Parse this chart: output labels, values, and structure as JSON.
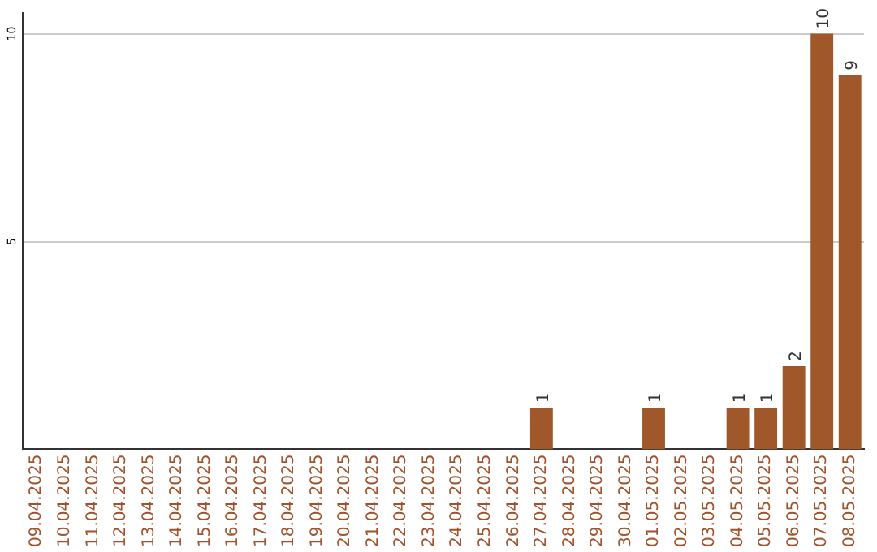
{
  "chart_data": {
    "type": "bar",
    "categories": [
      "09.04.2025",
      "10.04.2025",
      "11.04.2025",
      "12.04.2025",
      "13.04.2025",
      "14.04.2025",
      "15.04.2025",
      "16.04.2025",
      "17.04.2025",
      "18.04.2025",
      "19.04.2025",
      "20.04.2025",
      "21.04.2025",
      "22.04.2025",
      "23.04.2025",
      "24.04.2025",
      "25.04.2025",
      "26.04.2025",
      "27.04.2025",
      "28.04.2025",
      "29.04.2025",
      "30.04.2025",
      "01.05.2025",
      "02.05.2025",
      "03.05.2025",
      "04.05.2025",
      "05.05.2025",
      "06.05.2025",
      "07.05.2025",
      "08.05.2025"
    ],
    "values": [
      0,
      0,
      0,
      0,
      0,
      0,
      0,
      0,
      0,
      0,
      0,
      0,
      0,
      0,
      0,
      0,
      0,
      0,
      1,
      0,
      0,
      0,
      1,
      0,
      0,
      1,
      1,
      2,
      10,
      9
    ],
    "value_labels": [
      null,
      null,
      null,
      null,
      null,
      null,
      null,
      null,
      null,
      null,
      null,
      null,
      null,
      null,
      null,
      null,
      null,
      null,
      "1",
      null,
      null,
      null,
      "1",
      null,
      null,
      "1",
      "1",
      "2",
      "10",
      "9"
    ],
    "color": "#a0582a",
    "ylim": [
      0,
      10.5
    ],
    "yticks": [
      5,
      10
    ],
    "grid": "y",
    "legend": false
  }
}
